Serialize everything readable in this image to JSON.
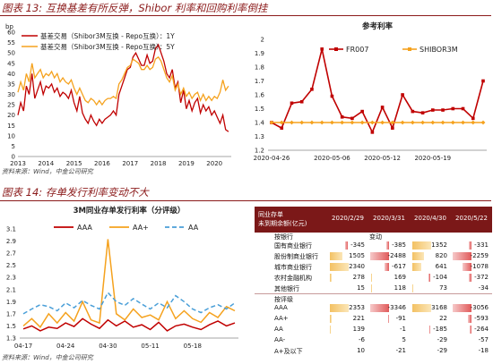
{
  "fig13": {
    "title": "图表 13:",
    "title_text": "互换基差有所反弹，Shibor 利率和回购利率倒挂",
    "source": "资料来源：Wind，中金公司研究"
  },
  "fig14": {
    "title": "图表 14:",
    "title_text": "存单发行利率变动不大",
    "source": "资料来源：Wind，中金公司研究"
  },
  "colors": {
    "red": "#c00000",
    "orange": "#f5a21e",
    "blue": "#4a9fd8",
    "header_bg": "#7b1818"
  },
  "chart_data": [
    {
      "id": "basis-swap",
      "type": "line",
      "title": "",
      "ylabel": "bp",
      "ylim": [
        0,
        60
      ],
      "yticks": [
        "0",
        "5",
        "10",
        "15",
        "20",
        "25",
        "30",
        "35",
        "40",
        "45",
        "50",
        "55",
        "60"
      ],
      "xlim": [
        2013.0,
        2020.6
      ],
      "xticks": [
        "2013",
        "2014",
        "2015",
        "2016",
        "2017",
        "2018",
        "2019",
        "2020"
      ],
      "x": [
        2013.0,
        2013.1,
        2013.2,
        2013.3,
        2013.4,
        2013.5,
        2013.6,
        2013.7,
        2013.8,
        2013.9,
        2014.0,
        2014.1,
        2014.2,
        2014.3,
        2014.4,
        2014.5,
        2014.6,
        2014.7,
        2014.8,
        2014.9,
        2015.0,
        2015.1,
        2015.2,
        2015.3,
        2015.4,
        2015.5,
        2015.6,
        2015.7,
        2015.8,
        2015.9,
        2016.0,
        2016.1,
        2016.2,
        2016.3,
        2016.4,
        2016.5,
        2016.6,
        2016.7,
        2016.8,
        2016.9,
        2017.0,
        2017.1,
        2017.2,
        2017.3,
        2017.4,
        2017.5,
        2017.6,
        2017.7,
        2017.8,
        2017.9,
        2018.0,
        2018.1,
        2018.2,
        2018.3,
        2018.4,
        2018.5,
        2018.6,
        2018.7,
        2018.8,
        2018.9,
        2019.0,
        2019.1,
        2019.2,
        2019.3,
        2019.4,
        2019.5,
        2019.6,
        2019.7,
        2019.8,
        2019.9,
        2020.0,
        2020.1,
        2020.2,
        2020.3,
        2020.4,
        2020.5
      ],
      "series": [
        {
          "name": "基差交易（Shibor3M互换 - Repo互换）：1Y",
          "color": "#c00000",
          "values": [
            20,
            26,
            22,
            34,
            30,
            40,
            28,
            32,
            36,
            30,
            34,
            33,
            35,
            31,
            33,
            29,
            31,
            30,
            28,
            32,
            26,
            22,
            29,
            21,
            18,
            16,
            20,
            17,
            15,
            18,
            16,
            18,
            19,
            20,
            22,
            20,
            30,
            34,
            38,
            42,
            43,
            48,
            50,
            47,
            44,
            44,
            49,
            45,
            46,
            52,
            54,
            50,
            46,
            40,
            38,
            42,
            33,
            36,
            26,
            32,
            23,
            27,
            22,
            26,
            28,
            21,
            25,
            22,
            24,
            20,
            22,
            19,
            16,
            20,
            13,
            12
          ]
        },
        {
          "name": "基差交易（Shibor3M互换 - Repo互换）：5Y",
          "color": "#f5a21e",
          "values": [
            31,
            36,
            32,
            40,
            36,
            45,
            38,
            40,
            42,
            38,
            40,
            39,
            41,
            38,
            40,
            36,
            38,
            36,
            35,
            37,
            33,
            30,
            33,
            30,
            27,
            26,
            28,
            27,
            25,
            27,
            25,
            27,
            28,
            28,
            29,
            28,
            35,
            37,
            40,
            43,
            44,
            47,
            46,
            45,
            42,
            42,
            44,
            42,
            43,
            47,
            48,
            46,
            42,
            38,
            36,
            39,
            32,
            35,
            30,
            33,
            29,
            31,
            28,
            30,
            31,
            27,
            30,
            27,
            29,
            27,
            29,
            28,
            31,
            37,
            32,
            34
          ]
        }
      ]
    },
    {
      "id": "ref-rates",
      "type": "line",
      "title": "参考利率",
      "ylim": [
        1.2,
        2.0
      ],
      "yticks": [
        "1.2",
        "1.3",
        "1.4",
        "1.5",
        "1.6",
        "1.7",
        "1.8",
        "1.9",
        "2"
      ],
      "xticks": [
        "2020-04-26",
        "2020-05-06",
        "2020-05-12",
        "2020-05-19"
      ],
      "xtick_index": [
        0,
        6,
        11,
        16
      ],
      "series": [
        {
          "name": "FR007",
          "color": "#c00000",
          "values": [
            1.4,
            1.36,
            1.54,
            1.55,
            1.64,
            1.93,
            1.59,
            1.44,
            1.43,
            1.48,
            1.33,
            1.51,
            1.36,
            1.6,
            1.48,
            1.47,
            1.49,
            1.49,
            1.5,
            1.5,
            1.43,
            1.7
          ]
        },
        {
          "name": "SHIBOR3M",
          "color": "#f5a21e",
          "values": [
            1.4,
            1.4,
            1.4,
            1.4,
            1.4,
            1.4,
            1.4,
            1.4,
            1.4,
            1.4,
            1.4,
            1.4,
            1.4,
            1.4,
            1.4,
            1.4,
            1.4,
            1.4,
            1.4,
            1.4,
            1.4,
            1.4
          ]
        }
      ]
    },
    {
      "id": "cd-rates",
      "type": "line",
      "title": "3M同业存单发行利率（分评级）",
      "ylim": [
        1.3,
        3.1
      ],
      "yticks": [
        "1.3",
        "1.5",
        "1.7",
        "1.9",
        "2.1",
        "2.3",
        "2.5",
        "2.7",
        "2.9",
        "3.1"
      ],
      "xticks": [
        "04-17",
        "04-24",
        "04-30",
        "05-11",
        "05-18"
      ],
      "xtick_index": [
        0,
        5,
        10,
        15,
        20
      ],
      "series": [
        {
          "name": "AAA",
          "color": "#c00000",
          "values": [
            1.45,
            1.5,
            1.42,
            1.48,
            1.46,
            1.55,
            1.49,
            1.62,
            1.53,
            1.46,
            1.6,
            1.5,
            1.58,
            1.48,
            1.52,
            1.44,
            1.56,
            1.42,
            1.5,
            1.53,
            1.48,
            1.44,
            1.52,
            1.58,
            1.5,
            1.55
          ]
        },
        {
          "name": "AA+",
          "color": "#f5a21e",
          "values": [
            1.5,
            1.62,
            1.48,
            1.7,
            1.55,
            1.72,
            1.58,
            1.9,
            1.6,
            1.55,
            2.93,
            1.7,
            1.6,
            1.78,
            1.64,
            1.68,
            1.6,
            1.9,
            1.62,
            1.75,
            1.62,
            1.56,
            1.72,
            1.64,
            1.82,
            1.75
          ]
        },
        {
          "name": "AA",
          "color": "#4a9fd8",
          "dash": true,
          "values": [
            1.7,
            1.78,
            1.85,
            1.82,
            1.75,
            1.88,
            1.8,
            1.92,
            1.84,
            1.78,
            2.05,
            1.9,
            1.84,
            1.95,
            1.86,
            1.78,
            1.88,
            1.8,
            2.0,
            1.9,
            1.78,
            1.72,
            1.8,
            1.85,
            1.78,
            1.88
          ]
        }
      ]
    }
  ],
  "table": {
    "header_label_line1": "同业存单",
    "header_label_line2": "未到期余额(亿元)",
    "columns": [
      "2020/2/29",
      "2020/3/31",
      "2020/4/30",
      "2020/5/22"
    ],
    "section1_title": "变动",
    "section1_sub": "按银行",
    "section1_rows": [
      {
        "name": "国有商业银行",
        "values": [
          -345,
          -385,
          1352,
          -331
        ],
        "display": [
          "-345",
          "-385",
          "1352",
          "-331"
        ]
      },
      {
        "name": "股份制商业银行",
        "values": [
          1505,
          -2488,
          820,
          -2259
        ],
        "display": [
          "1505",
          "-2488",
          "820",
          "-2259"
        ]
      },
      {
        "name": "城市商业银行",
        "values": [
          2340,
          -617,
          641,
          -1078
        ],
        "display": [
          "2340",
          "-617",
          "641",
          "-1078"
        ]
      },
      {
        "name": "农村金融机构",
        "values": [
          278,
          169,
          -104,
          -372
        ],
        "display": [
          "278",
          "169",
          "-104",
          "-372"
        ]
      },
      {
        "name": "其他银行",
        "values": [
          15,
          118,
          73,
          -34
        ],
        "display": [
          "15",
          "118",
          "73",
          "-34"
        ]
      }
    ],
    "section2_title": "按评级",
    "section2_rows": [
      {
        "name": "AAA",
        "values": [
          2353,
          -3346,
          3168,
          -3056
        ],
        "display": [
          "2353",
          "-3346",
          "3168",
          "-3056"
        ]
      },
      {
        "name": "AA+",
        "values": [
          221,
          -91,
          22,
          -593
        ],
        "display": [
          "221",
          "-91",
          "22",
          "-593"
        ]
      },
      {
        "name": "AA",
        "values": [
          139,
          -1,
          -185,
          -264
        ],
        "display": [
          "139",
          "-1",
          "-185",
          "-264"
        ]
      },
      {
        "name": "AA-",
        "values": [
          -6,
          5,
          -29,
          -57
        ],
        "display": [
          "-6",
          "5",
          "-29",
          "-57"
        ]
      },
      {
        "name": "A+及以下",
        "values": [
          10,
          -21,
          -29,
          -18
        ],
        "display": [
          "10",
          "-21",
          "-29",
          "-18"
        ]
      }
    ]
  }
}
